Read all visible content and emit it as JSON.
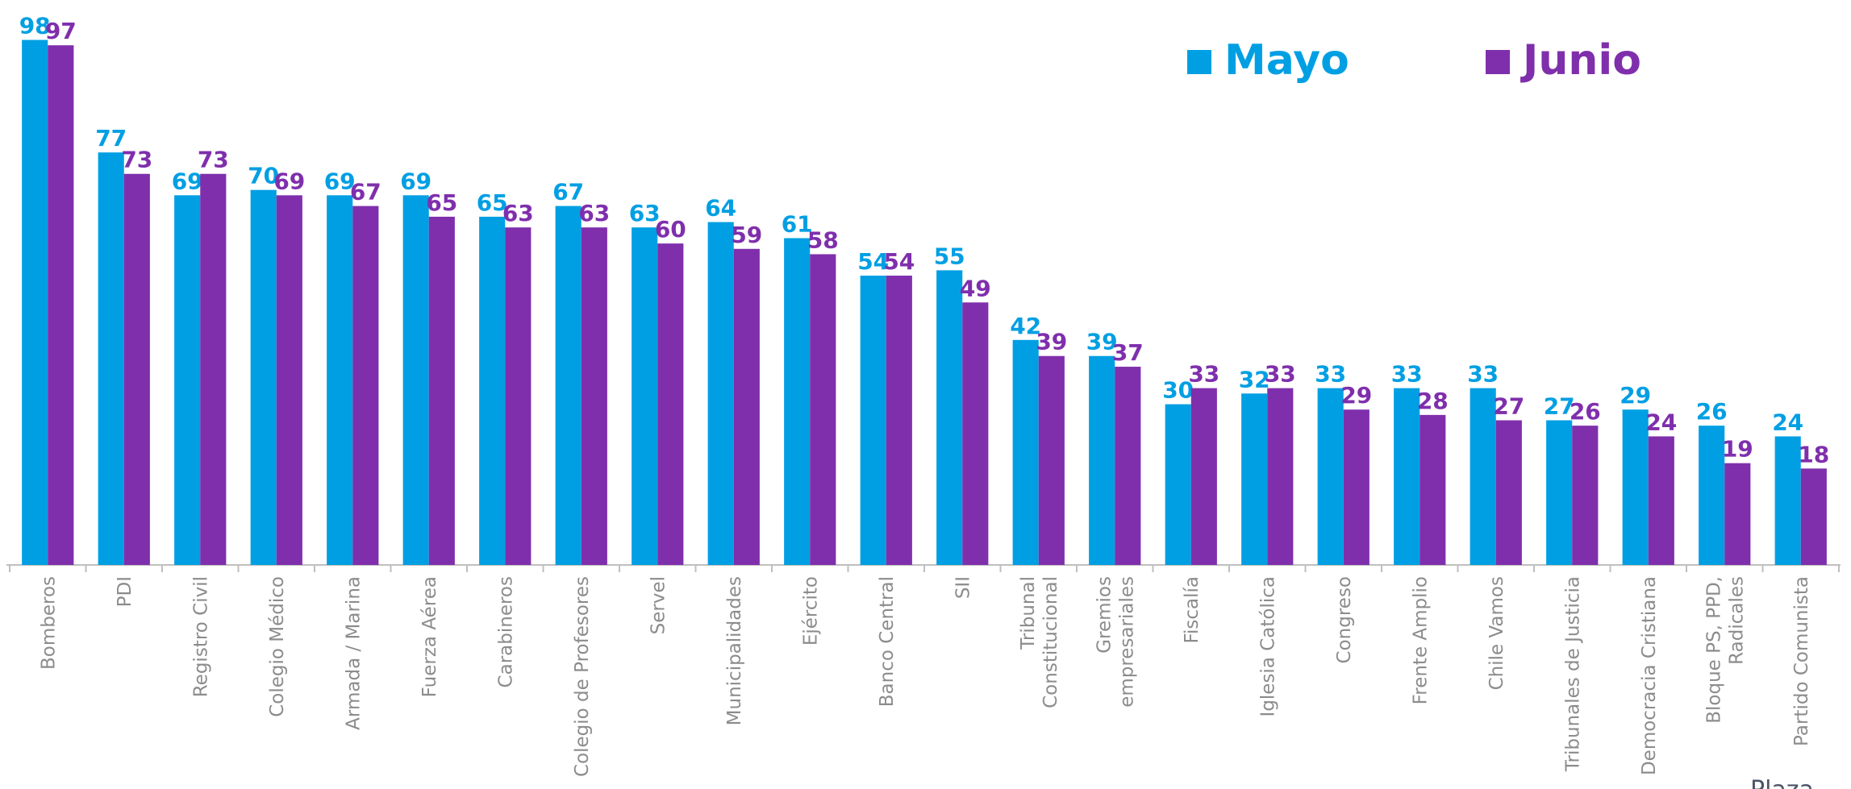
{
  "chart_data": {
    "type": "bar",
    "categories": [
      "Bomberos",
      "PDI",
      "Registro Civil",
      "Colegio Médico",
      "Armada / Marina",
      "Fuerza Aérea",
      "Carabineros",
      "Colegio de Profesores",
      "Servel",
      "Municipalidades",
      "Ejército",
      "Banco Central",
      "SII",
      "Tribunal\nConstitucional",
      "Gremios\nempresariales",
      "Fiscalía",
      "Iglesia Católica",
      "Congreso",
      "Frente Amplio",
      "Chile Vamos",
      "Tribunales de Justicia",
      "Democracia Cristiana",
      "Bloque PS, PPD,\nRadicales",
      "Partido Comunista"
    ],
    "series": [
      {
        "name": "Mayo",
        "color": "#009fe3",
        "values": [
          98,
          77,
          69,
          70,
          69,
          69,
          65,
          67,
          63,
          64,
          61,
          54,
          55,
          42,
          39,
          30,
          32,
          33,
          33,
          33,
          27,
          29,
          26,
          24
        ]
      },
      {
        "name": "Junio",
        "color": "#7f2fac",
        "values": [
          97,
          73,
          73,
          69,
          67,
          65,
          63,
          63,
          60,
          59,
          58,
          54,
          49,
          39,
          37,
          33,
          33,
          29,
          28,
          27,
          26,
          24,
          19,
          18
        ]
      }
    ],
    "ylim": [
      0,
      105
    ],
    "legend": "top-right",
    "source": "Plaza"
  }
}
